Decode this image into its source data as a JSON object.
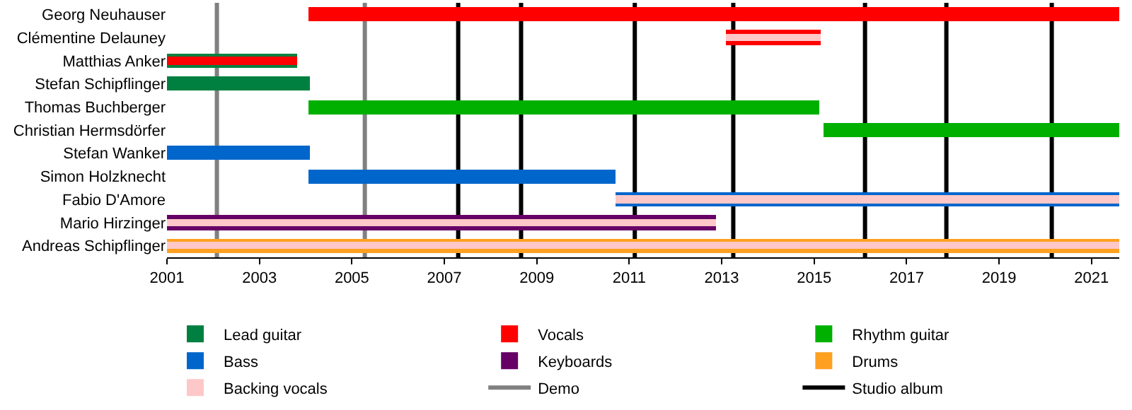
{
  "chart_data": {
    "type": "bar",
    "orientation": "horizontal",
    "categories": [
      "Georg Neuhauser",
      "Clémentine Delauney",
      "Matthias Anker",
      "Stefan Schipflinger",
      "Thomas Buchberger",
      "Christian Hermsdörfer",
      "Stefan Wanker",
      "Simon Holzknecht",
      "Fabio D'Amore",
      "Mario Hirzinger",
      "Andreas Schipflinger"
    ],
    "xlim": [
      2001,
      2021.6
    ],
    "xticks": [
      2001,
      2003,
      2005,
      2007,
      2009,
      2011,
      2013,
      2015,
      2017,
      2019,
      2021
    ],
    "grid": false,
    "legend": "bottom",
    "series": [
      {
        "name": "Lead guitar",
        "color": "#008040",
        "base": [
          null,
          null,
          2001,
          2001,
          null,
          null,
          null,
          null,
          null,
          null,
          null
        ],
        "values": [
          null,
          null,
          2.83,
          3.08,
          null,
          null,
          null,
          null,
          null,
          null,
          null
        ]
      },
      {
        "name": "Vocals",
        "color": "#ff0000",
        "base": [
          2004.05,
          2013.1,
          2001,
          null,
          null,
          null,
          null,
          null,
          null,
          null,
          null
        ],
        "values": [
          17.55,
          2.05,
          2.83,
          null,
          null,
          null,
          null,
          null,
          null,
          null,
          null
        ]
      },
      {
        "name": "Rhythm guitar",
        "color": "#00b000",
        "base": [
          null,
          null,
          null,
          null,
          2004.05,
          2015.2,
          null,
          null,
          null,
          null,
          null
        ],
        "values": [
          null,
          null,
          null,
          null,
          11.05,
          6.4,
          null,
          null,
          null,
          null,
          null
        ]
      },
      {
        "name": "Bass",
        "color": "#0066cc",
        "base": [
          null,
          null,
          null,
          null,
          null,
          null,
          2001,
          2004.05,
          2010.7,
          null,
          null
        ],
        "values": [
          null,
          null,
          null,
          null,
          null,
          null,
          3.08,
          6.65,
          10.9,
          null,
          null
        ]
      },
      {
        "name": "Keyboards",
        "color": "#660066",
        "base": [
          null,
          null,
          null,
          null,
          null,
          null,
          null,
          null,
          null,
          2001,
          null
        ],
        "values": [
          null,
          null,
          null,
          null,
          null,
          null,
          null,
          null,
          null,
          11.88,
          null
        ]
      },
      {
        "name": "Drums",
        "color": "#ffa020",
        "base": [
          null,
          null,
          null,
          null,
          null,
          null,
          null,
          null,
          null,
          null,
          2001
        ],
        "values": [
          null,
          null,
          null,
          null,
          null,
          null,
          null,
          null,
          null,
          null,
          20.6
        ]
      },
      {
        "name": "Backing vocals",
        "color": "#ffc8c8",
        "base": [
          null,
          2013.1,
          null,
          null,
          null,
          null,
          null,
          null,
          2010.7,
          2001,
          2001
        ],
        "values": [
          null,
          2.05,
          null,
          null,
          null,
          null,
          null,
          null,
          10.9,
          11.88,
          20.6
        ]
      }
    ],
    "ref_lines": [
      {
        "axis": "x",
        "value": 2002.08,
        "label": "Demo",
        "color": "#808080"
      },
      {
        "axis": "x",
        "value": 2005.28,
        "color": "#808080"
      },
      {
        "axis": "x",
        "value": 2007.3,
        "label": "Studio album",
        "color": "#000000"
      },
      {
        "axis": "x",
        "value": 2008.66,
        "color": "#000000"
      },
      {
        "axis": "x",
        "value": 2011.12,
        "color": "#000000"
      },
      {
        "axis": "x",
        "value": 2013.25,
        "color": "#000000"
      },
      {
        "axis": "x",
        "value": 2016.1,
        "color": "#000000"
      },
      {
        "axis": "x",
        "value": 2017.86,
        "color": "#000000"
      },
      {
        "axis": "x",
        "value": 2020.14,
        "color": "#000000"
      }
    ]
  }
}
